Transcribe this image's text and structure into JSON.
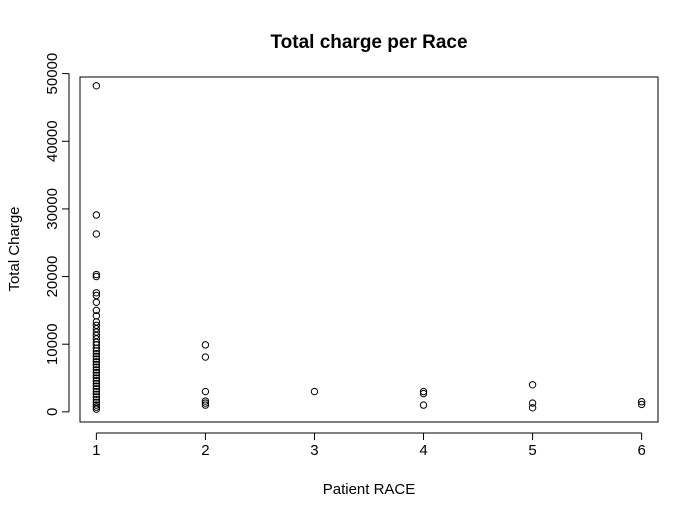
{
  "chart_data": {
    "type": "scatter",
    "title": "Total charge per Race",
    "xlabel": "Patient RACE",
    "ylabel": "Total Charge",
    "xlim": [
      0.85,
      6.15
    ],
    "ylim": [
      -1500,
      49500
    ],
    "xticks": [
      1,
      2,
      3,
      4,
      5,
      6
    ],
    "yticks": [
      0,
      10000,
      20000,
      30000,
      40000,
      50000
    ],
    "grid": false,
    "series": [
      {
        "points": [
          [
            1,
            48200
          ],
          [
            1,
            29100
          ],
          [
            1,
            26300
          ],
          [
            1,
            20300
          ],
          [
            1,
            20000
          ],
          [
            1,
            17600
          ],
          [
            1,
            17200
          ],
          [
            1,
            16200
          ],
          [
            1,
            15000
          ],
          [
            1,
            14200
          ],
          [
            1,
            13300
          ],
          [
            1,
            12800
          ],
          [
            1,
            12300
          ],
          [
            1,
            11800
          ],
          [
            1,
            11300
          ],
          [
            1,
            10800
          ],
          [
            1,
            10300
          ],
          [
            1,
            9900
          ],
          [
            1,
            9400
          ],
          [
            1,
            9000
          ],
          [
            1,
            8600
          ],
          [
            1,
            8200
          ],
          [
            1,
            7800
          ],
          [
            1,
            7400
          ],
          [
            1,
            7000
          ],
          [
            1,
            6600
          ],
          [
            1,
            6200
          ],
          [
            1,
            5800
          ],
          [
            1,
            5400
          ],
          [
            1,
            5000
          ],
          [
            1,
            4600
          ],
          [
            1,
            4200
          ],
          [
            1,
            3800
          ],
          [
            1,
            3400
          ],
          [
            1,
            3000
          ],
          [
            1,
            2600
          ],
          [
            1,
            2200
          ],
          [
            1,
            1800
          ],
          [
            1,
            1400
          ],
          [
            1,
            1000
          ],
          [
            1,
            700
          ],
          [
            1,
            400
          ],
          [
            2,
            9900
          ],
          [
            2,
            8100
          ],
          [
            2,
            3000
          ],
          [
            2,
            1600
          ],
          [
            2,
            1300
          ],
          [
            2,
            1000
          ],
          [
            3,
            3000
          ],
          [
            4,
            3000
          ],
          [
            4,
            2700
          ],
          [
            4,
            1000
          ],
          [
            5,
            4000
          ],
          [
            5,
            1300
          ],
          [
            5,
            600
          ],
          [
            6,
            1500
          ],
          [
            6,
            1100
          ]
        ]
      }
    ]
  }
}
